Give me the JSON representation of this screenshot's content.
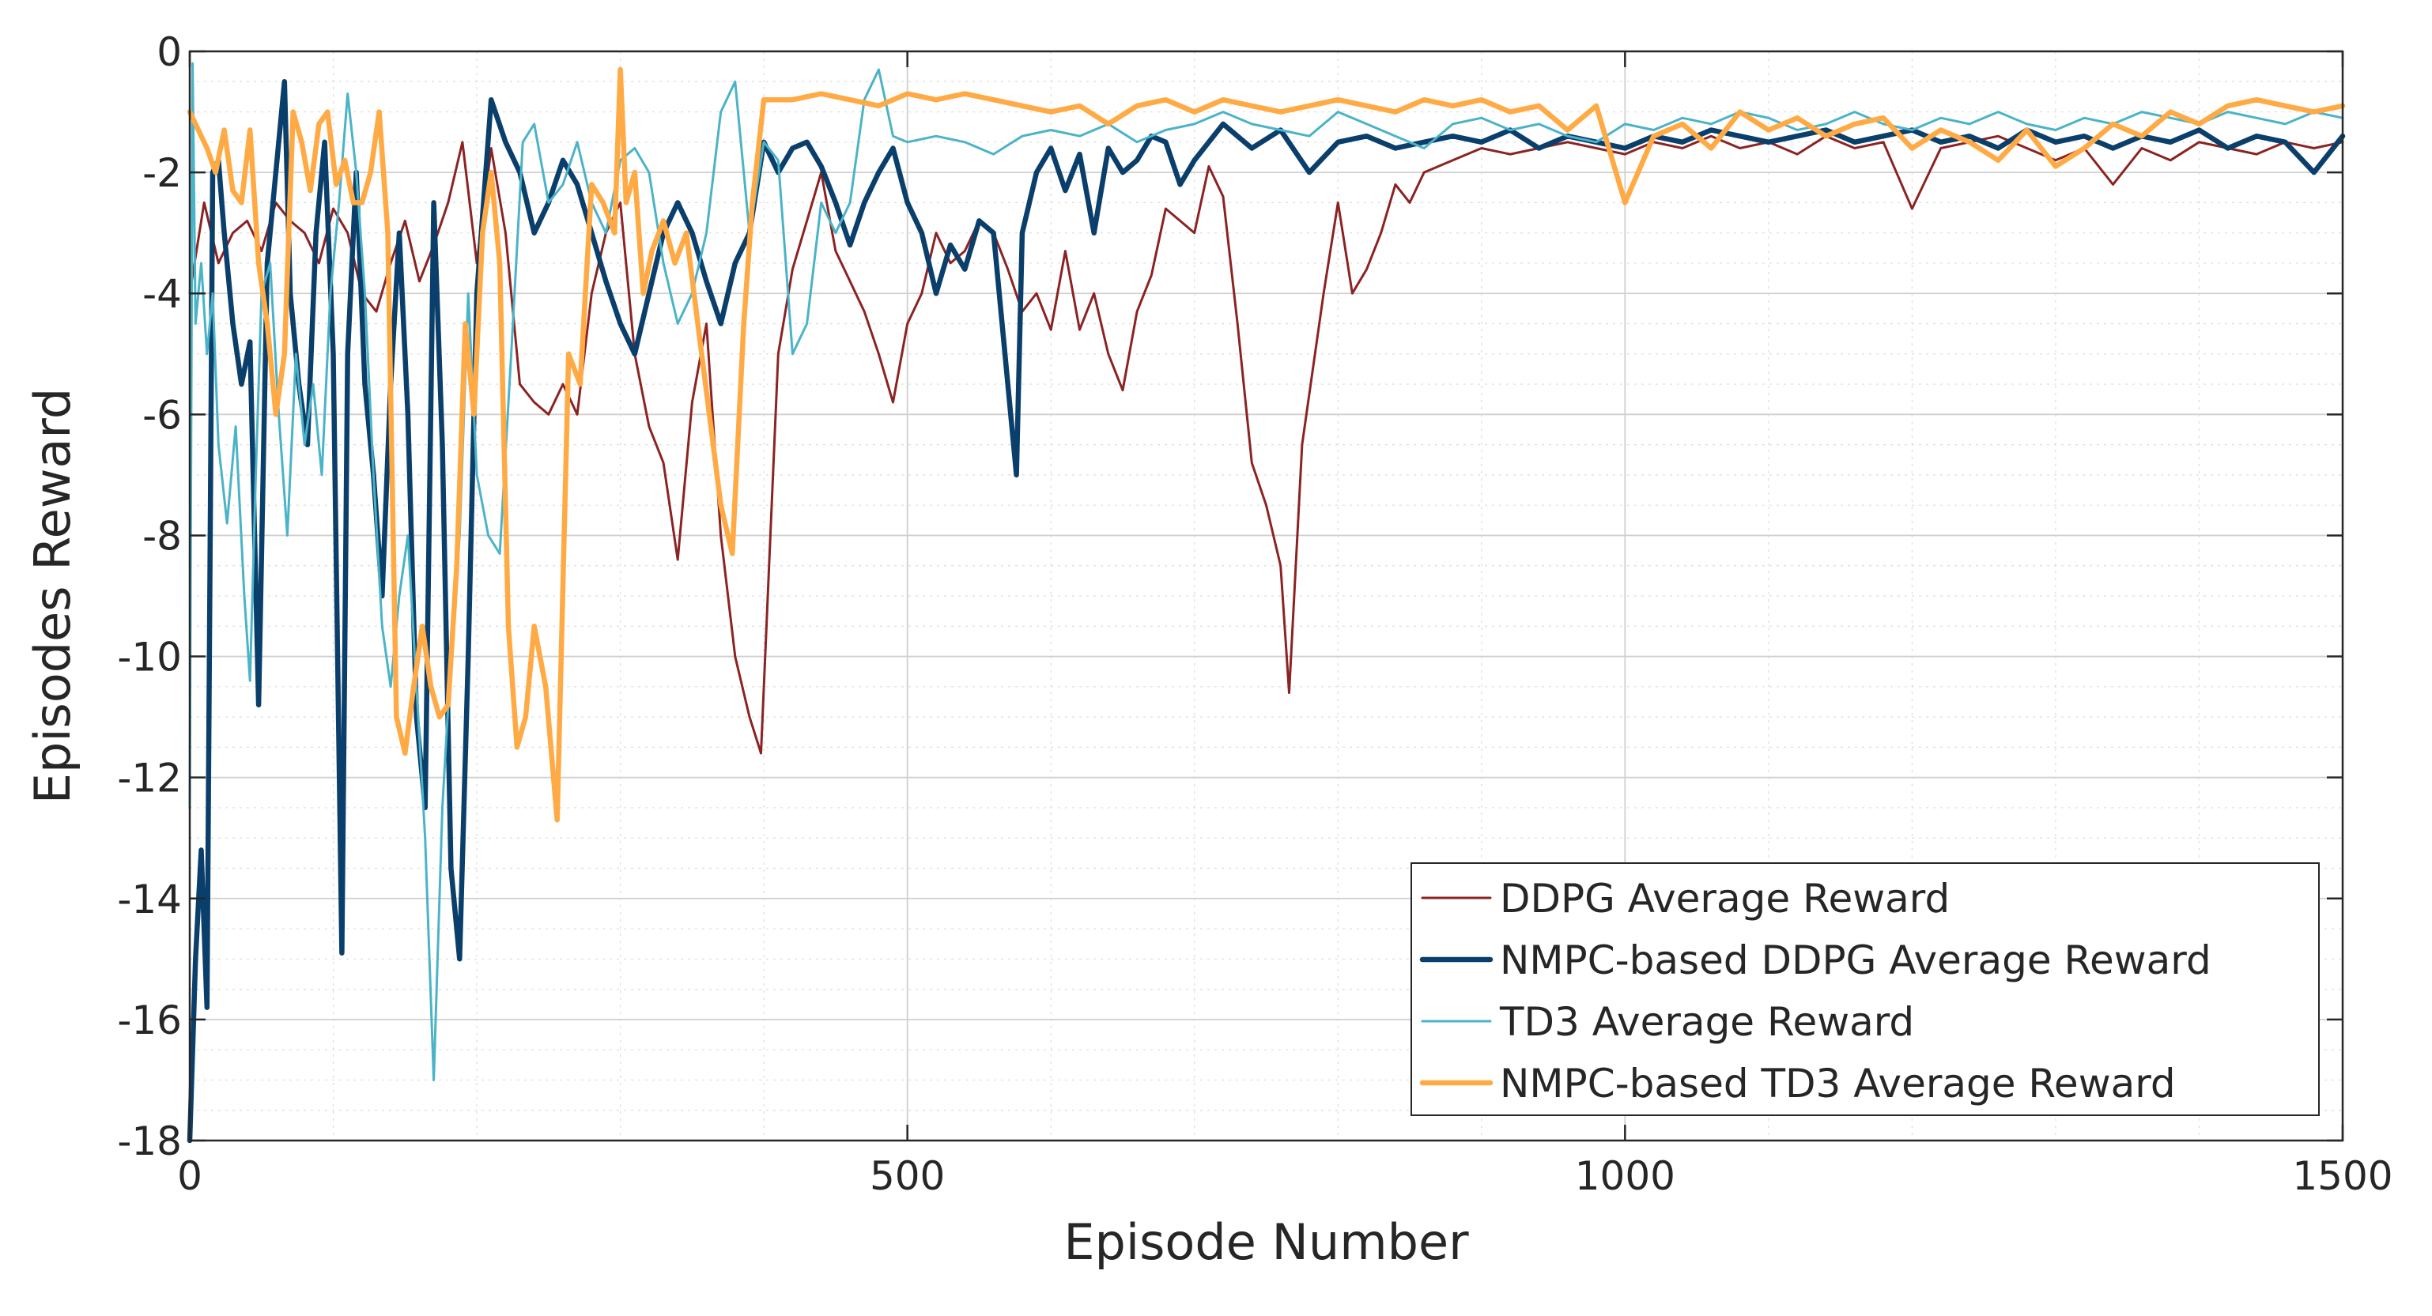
{
  "chart_data": {
    "type": "line",
    "title": "",
    "xlabel": "Episode Number",
    "ylabel": "Episodes Reward",
    "xlim": [
      0,
      1500
    ],
    "ylim": [
      -18,
      0
    ],
    "xticks": [
      0,
      500,
      1000,
      1500
    ],
    "yticks": [
      0,
      -2,
      -4,
      -6,
      -8,
      -10,
      -12,
      -14,
      -16,
      -18
    ],
    "xtick_labels": [
      "0",
      "500",
      "1000",
      "1500"
    ],
    "ytick_labels": [
      "0",
      "-2",
      "-4",
      "-6",
      "-8",
      "-10",
      "-12",
      "-14",
      "-16",
      "-18"
    ],
    "grid": true,
    "minor_grid": true,
    "legend_position": "bottom-right",
    "series": [
      {
        "name": "DDPG Average Reward",
        "color": "#8B2323",
        "width": "thin",
        "x": [
          0,
          10,
          20,
          30,
          40,
          50,
          60,
          70,
          80,
          90,
          100,
          110,
          120,
          130,
          140,
          150,
          160,
          170,
          180,
          190,
          200,
          210,
          220,
          230,
          240,
          250,
          260,
          270,
          280,
          290,
          300,
          310,
          320,
          330,
          340,
          350,
          360,
          370,
          380,
          390,
          398,
          410,
          420,
          430,
          440,
          450,
          460,
          470,
          480,
          490,
          500,
          510,
          520,
          530,
          540,
          550,
          560,
          570,
          580,
          590,
          600,
          610,
          620,
          630,
          640,
          650,
          660,
          670,
          680,
          690,
          700,
          710,
          720,
          730,
          740,
          750,
          760,
          766,
          775,
          790,
          800,
          810,
          820,
          830,
          840,
          850,
          860,
          880,
          900,
          920,
          940,
          960,
          980,
          1000,
          1020,
          1040,
          1060,
          1080,
          1100,
          1120,
          1140,
          1160,
          1180,
          1200,
          1220,
          1240,
          1260,
          1280,
          1300,
          1320,
          1340,
          1360,
          1380,
          1400,
          1420,
          1440,
          1460,
          1480,
          1500
        ],
        "values": [
          -4.0,
          -2.5,
          -3.5,
          -3.0,
          -2.8,
          -3.3,
          -2.5,
          -2.8,
          -3.0,
          -3.5,
          -2.6,
          -3.0,
          -4.0,
          -4.3,
          -3.5,
          -2.8,
          -3.8,
          -3.2,
          -2.5,
          -1.5,
          -3.5,
          -1.6,
          -3.0,
          -5.5,
          -5.8,
          -6.0,
          -5.5,
          -6.0,
          -4.0,
          -3.0,
          -2.5,
          -5.0,
          -6.2,
          -6.8,
          -8.4,
          -5.8,
          -4.5,
          -8.0,
          -10.0,
          -11.0,
          -11.6,
          -5.0,
          -3.6,
          -2.8,
          -2.0,
          -3.3,
          -3.8,
          -4.3,
          -5.0,
          -5.8,
          -4.5,
          -4.0,
          -3.0,
          -3.5,
          -3.3,
          -2.8,
          -3.0,
          -3.6,
          -4.3,
          -4.0,
          -4.6,
          -3.3,
          -4.6,
          -4.0,
          -5.0,
          -5.6,
          -4.3,
          -3.7,
          -2.6,
          -2.8,
          -3.0,
          -1.9,
          -2.4,
          -4.5,
          -6.8,
          -7.5,
          -8.5,
          -10.6,
          -6.5,
          -4.0,
          -2.5,
          -4.0,
          -3.6,
          -3.0,
          -2.2,
          -2.5,
          -2.0,
          -1.8,
          -1.6,
          -1.7,
          -1.6,
          -1.5,
          -1.6,
          -1.7,
          -1.5,
          -1.6,
          -1.4,
          -1.6,
          -1.5,
          -1.7,
          -1.4,
          -1.6,
          -1.5,
          -2.6,
          -1.6,
          -1.5,
          -1.4,
          -1.6,
          -1.8,
          -1.6,
          -2.2,
          -1.6,
          -1.8,
          -1.5,
          -1.6,
          -1.7,
          -1.5,
          -1.6,
          -1.5
        ]
      },
      {
        "name": "NMPC-based DDPG Average Reward",
        "color": "#0B3F6B",
        "width": "thick",
        "x": [
          0,
          4,
          8,
          12,
          16,
          20,
          24,
          30,
          36,
          42,
          48,
          54,
          60,
          66,
          70,
          76,
          82,
          88,
          94,
          100,
          106,
          110,
          116,
          122,
          128,
          134,
          140,
          146,
          152,
          158,
          164,
          170,
          176,
          182,
          188,
          194,
          200,
          210,
          220,
          230,
          240,
          250,
          260,
          270,
          280,
          290,
          300,
          310,
          320,
          330,
          340,
          350,
          360,
          370,
          380,
          390,
          400,
          410,
          420,
          430,
          440,
          450,
          460,
          470,
          480,
          490,
          500,
          510,
          520,
          530,
          540,
          550,
          560,
          570,
          576,
          580,
          590,
          600,
          610,
          620,
          630,
          640,
          650,
          660,
          670,
          680,
          690,
          700,
          720,
          740,
          760,
          780,
          800,
          820,
          840,
          860,
          880,
          900,
          920,
          940,
          960,
          980,
          1000,
          1020,
          1040,
          1060,
          1080,
          1100,
          1120,
          1140,
          1160,
          1180,
          1200,
          1220,
          1240,
          1260,
          1280,
          1300,
          1320,
          1340,
          1360,
          1380,
          1400,
          1420,
          1440,
          1460,
          1480,
          1500
        ],
        "values": [
          -18.0,
          -15.0,
          -13.2,
          -15.8,
          -2.0,
          -1.8,
          -3.0,
          -4.5,
          -5.5,
          -4.8,
          -10.8,
          -3.5,
          -2.0,
          -0.5,
          -4.0,
          -5.5,
          -6.5,
          -3.0,
          -1.5,
          -5.0,
          -14.9,
          -5.0,
          -2.0,
          -5.5,
          -7.0,
          -9.0,
          -5.5,
          -3.0,
          -6.0,
          -11.0,
          -12.5,
          -2.5,
          -6.5,
          -13.5,
          -15.0,
          -10.0,
          -4.0,
          -0.8,
          -1.5,
          -2.0,
          -3.0,
          -2.5,
          -1.8,
          -2.2,
          -3.0,
          -3.8,
          -4.5,
          -5.0,
          -4.0,
          -3.0,
          -2.5,
          -3.0,
          -3.8,
          -4.5,
          -3.5,
          -3.0,
          -1.5,
          -2.0,
          -1.6,
          -1.5,
          -1.9,
          -2.5,
          -3.2,
          -2.5,
          -2.0,
          -1.6,
          -2.5,
          -3.0,
          -4.0,
          -3.2,
          -3.6,
          -2.8,
          -3.0,
          -5.5,
          -7.0,
          -3.0,
          -2.0,
          -1.6,
          -2.3,
          -1.7,
          -3.0,
          -1.6,
          -2.0,
          -1.8,
          -1.4,
          -1.5,
          -2.2,
          -1.8,
          -1.2,
          -1.6,
          -1.3,
          -2.0,
          -1.5,
          -1.4,
          -1.6,
          -1.5,
          -1.4,
          -1.5,
          -1.3,
          -1.6,
          -1.4,
          -1.5,
          -1.6,
          -1.4,
          -1.5,
          -1.3,
          -1.4,
          -1.5,
          -1.4,
          -1.3,
          -1.5,
          -1.4,
          -1.3,
          -1.5,
          -1.4,
          -1.6,
          -1.3,
          -1.5,
          -1.4,
          -1.6,
          -1.4,
          -1.5,
          -1.3,
          -1.6,
          -1.4,
          -1.5,
          -2.0,
          -1.4
        ]
      },
      {
        "name": "TD3 Average Reward",
        "color": "#4BB3C8",
        "width": "thin",
        "x": [
          0,
          2,
          4,
          8,
          12,
          16,
          20,
          26,
          32,
          38,
          42,
          46,
          50,
          56,
          62,
          68,
          74,
          80,
          86,
          92,
          98,
          104,
          110,
          116,
          122,
          128,
          134,
          140,
          146,
          152,
          158,
          164,
          170,
          176,
          182,
          188,
          194,
          200,
          208,
          216,
          224,
          232,
          240,
          250,
          260,
          270,
          280,
          290,
          300,
          310,
          320,
          330,
          340,
          350,
          360,
          370,
          380,
          390,
          400,
          410,
          420,
          430,
          440,
          450,
          460,
          470,
          480,
          490,
          500,
          520,
          540,
          560,
          580,
          600,
          620,
          640,
          660,
          680,
          700,
          720,
          740,
          760,
          780,
          800,
          820,
          840,
          860,
          880,
          900,
          920,
          940,
          960,
          980,
          1000,
          1020,
          1040,
          1060,
          1080,
          1100,
          1120,
          1140,
          1160,
          1180,
          1200,
          1220,
          1240,
          1260,
          1280,
          1300,
          1320,
          1340,
          1360,
          1380,
          1400,
          1420,
          1440,
          1460,
          1480,
          1500
        ],
        "values": [
          -12.5,
          -0.2,
          -4.5,
          -3.5,
          -5.0,
          -4.0,
          -6.5,
          -7.8,
          -6.2,
          -9.0,
          -10.4,
          -7.0,
          -4.0,
          -3.5,
          -6.0,
          -8.0,
          -5.0,
          -6.5,
          -5.5,
          -7.0,
          -4.0,
          -2.5,
          -0.7,
          -2.0,
          -4.0,
          -7.0,
          -9.5,
          -10.5,
          -9.0,
          -8.0,
          -10.5,
          -13.0,
          -17.0,
          -12.5,
          -10.0,
          -8.0,
          -4.0,
          -7.0,
          -8.0,
          -8.3,
          -5.0,
          -1.5,
          -1.2,
          -2.5,
          -2.2,
          -1.5,
          -2.5,
          -3.0,
          -1.8,
          -1.6,
          -2.0,
          -3.5,
          -4.5,
          -4.0,
          -3.0,
          -1.0,
          -0.5,
          -3.0,
          -1.5,
          -1.8,
          -5.0,
          -4.5,
          -2.5,
          -3.0,
          -2.5,
          -0.8,
          -0.3,
          -1.4,
          -1.5,
          -1.4,
          -1.5,
          -1.7,
          -1.4,
          -1.3,
          -1.4,
          -1.2,
          -1.5,
          -1.3,
          -1.2,
          -1.0,
          -1.2,
          -1.3,
          -1.4,
          -1.0,
          -1.2,
          -1.4,
          -1.6,
          -1.2,
          -1.1,
          -1.3,
          -1.2,
          -1.4,
          -1.5,
          -1.2,
          -1.3,
          -1.1,
          -1.2,
          -1.0,
          -1.1,
          -1.3,
          -1.2,
          -1.0,
          -1.2,
          -1.3,
          -1.1,
          -1.2,
          -1.0,
          -1.2,
          -1.3,
          -1.1,
          -1.2,
          -1.0,
          -1.1,
          -1.2,
          -1.0,
          -1.1,
          -1.2,
          -1.0,
          -1.1
        ]
      },
      {
        "name": "NMPC-based TD3 Average Reward",
        "color": "#FFAA44",
        "width": "thick",
        "x": [
          0,
          6,
          12,
          18,
          24,
          30,
          36,
          42,
          48,
          54,
          60,
          66,
          72,
          78,
          84,
          90,
          96,
          102,
          108,
          114,
          120,
          126,
          132,
          138,
          144,
          150,
          156,
          162,
          168,
          174,
          180,
          186,
          192,
          198,
          204,
          210,
          216,
          222,
          228,
          234,
          240,
          248,
          256,
          264,
          272,
          280,
          288,
          296,
          300,
          304,
          310,
          316,
          322,
          330,
          338,
          346,
          354,
          362,
          370,
          378,
          386,
          392,
          400,
          420,
          440,
          460,
          480,
          500,
          520,
          540,
          560,
          580,
          600,
          620,
          640,
          660,
          680,
          700,
          720,
          740,
          760,
          780,
          800,
          820,
          840,
          860,
          880,
          900,
          920,
          940,
          960,
          980,
          1000,
          1020,
          1040,
          1060,
          1080,
          1100,
          1120,
          1140,
          1160,
          1180,
          1200,
          1220,
          1240,
          1260,
          1280,
          1300,
          1320,
          1340,
          1360,
          1380,
          1400,
          1420,
          1440,
          1460,
          1480,
          1500
        ],
        "values": [
          -1.0,
          -1.3,
          -1.6,
          -2.0,
          -1.3,
          -2.3,
          -2.5,
          -1.3,
          -3.5,
          -4.5,
          -6.0,
          -5.0,
          -1.0,
          -1.5,
          -2.3,
          -1.2,
          -1.0,
          -2.2,
          -1.8,
          -2.5,
          -2.5,
          -2.0,
          -1.0,
          -3.0,
          -11.0,
          -11.6,
          -10.5,
          -9.5,
          -10.5,
          -11.0,
          -10.8,
          -8.5,
          -4.5,
          -6.0,
          -3.0,
          -2.0,
          -3.5,
          -9.5,
          -11.5,
          -11.0,
          -9.5,
          -10.5,
          -12.7,
          -5.0,
          -5.5,
          -2.2,
          -2.5,
          -3.0,
          -0.3,
          -2.5,
          -2.0,
          -4.0,
          -3.3,
          -2.8,
          -3.5,
          -3.0,
          -4.5,
          -6.0,
          -7.5,
          -8.3,
          -4.5,
          -2.5,
          -0.8,
          -0.8,
          -0.7,
          -0.8,
          -0.9,
          -0.7,
          -0.8,
          -0.7,
          -0.8,
          -0.9,
          -1.0,
          -0.9,
          -1.2,
          -0.9,
          -0.8,
          -1.0,
          -0.8,
          -0.9,
          -1.0,
          -0.9,
          -0.8,
          -0.9,
          -1.0,
          -0.8,
          -0.9,
          -0.8,
          -1.0,
          -0.9,
          -1.3,
          -0.9,
          -2.5,
          -1.4,
          -1.2,
          -1.6,
          -1.0,
          -1.3,
          -1.1,
          -1.4,
          -1.2,
          -1.1,
          -1.6,
          -1.3,
          -1.5,
          -1.8,
          -1.3,
          -1.9,
          -1.6,
          -1.2,
          -1.4,
          -1.0,
          -1.2,
          -0.9,
          -0.8,
          -0.9,
          -1.0,
          -0.9
        ]
      }
    ]
  }
}
